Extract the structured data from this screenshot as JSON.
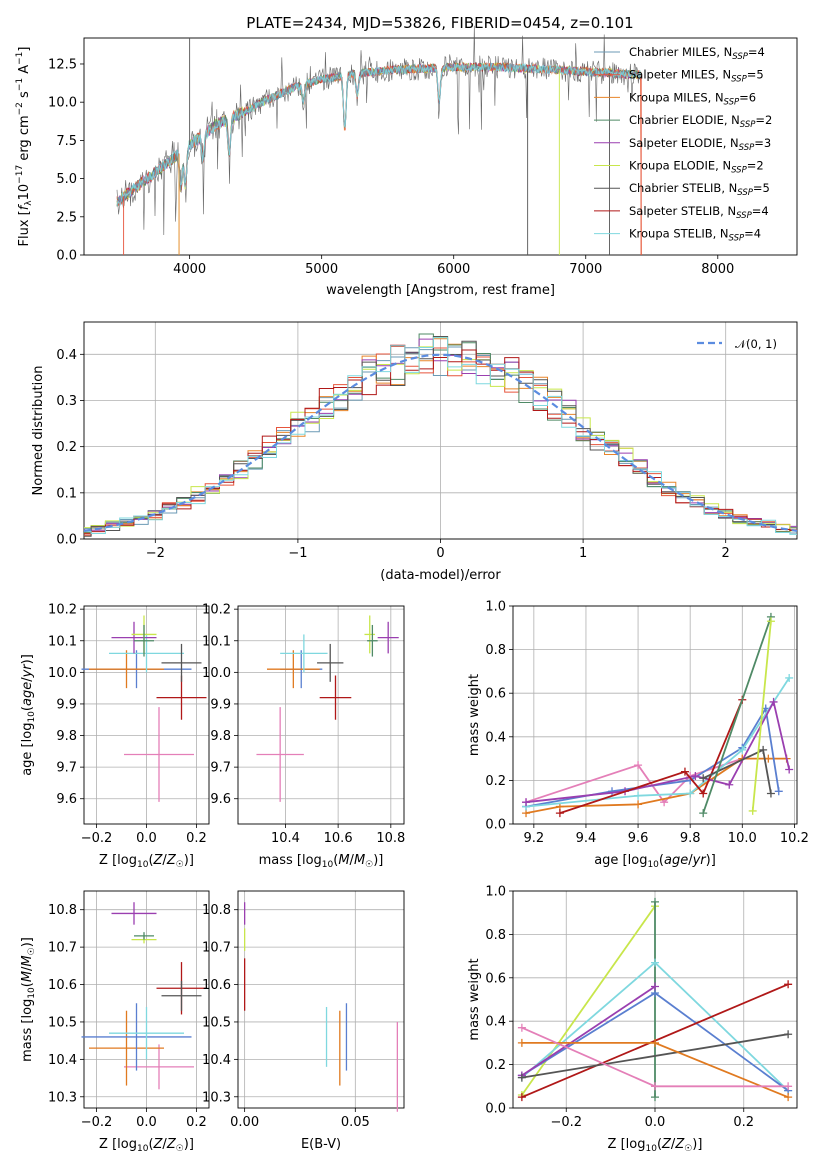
{
  "colors": {
    "cm": "#6b9ab5",
    "sm": "#e6553c",
    "km": "#e8852a",
    "ce": "#4f8a66",
    "se": "#9a3fb0",
    "ke": "#c8e64b",
    "cs": "#555555",
    "ss": "#b01818",
    "ks": "#7fd8df",
    "pink": "#e47fb8",
    "blue": "#5a7fd0",
    "orange": "#e07a20",
    "dashed": "#5b8ce0",
    "grid": "#b0b0b0"
  },
  "chart_data": [
    {
      "type": "line",
      "title": "PLATE=2434, MJD=53826, FIBERID=0454, z=0.101",
      "xlabel": "wavelength [Angstrom, rest frame]",
      "ylabel": "Flux [f_λ 10^-17 erg cm^-2 s^-1 A^-1]",
      "xlim": [
        3200,
        8600
      ],
      "ylim": [
        0,
        14.2
      ],
      "xticks": [
        "4000",
        "5000",
        "6000",
        "7000",
        "8000"
      ],
      "yticks": [
        "0.0",
        "2.5",
        "5.0",
        "7.5",
        "10.0",
        "12.5"
      ],
      "continuum_x": [
        3450,
        3600,
        3800,
        4000,
        4200,
        4400,
        4600,
        4800,
        5000,
        5200,
        5500,
        5800,
        6000,
        6300,
        6600,
        7000,
        7400
      ],
      "continuum_y": [
        3.5,
        4.5,
        5.8,
        7.2,
        8.5,
        9.3,
        10.2,
        11.0,
        11.5,
        11.8,
        12.1,
        12.2,
        12.3,
        12.3,
        12.2,
        12.0,
        11.8
      ],
      "legend_placement": "right",
      "legend": [
        {
          "name": "Chabrier MILES, N",
          "sub": "SSP",
          "val": "=4"
        },
        {
          "name": "Salpeter MILES, N",
          "sub": "SSP",
          "val": "=5"
        },
        {
          "name": "Kroupa MILES, N",
          "sub": "SSP",
          "val": "=6"
        },
        {
          "name": "Chabrier ELODIE, N",
          "sub": "SSP",
          "val": "=2"
        },
        {
          "name": "Salpeter ELODIE, N",
          "sub": "SSP",
          "val": "=3"
        },
        {
          "name": "Kroupa ELODIE, N",
          "sub": "SSP",
          "val": "=2"
        },
        {
          "name": "Chabrier STELIB, N",
          "sub": "SSP",
          "val": "=5"
        },
        {
          "name": "Salpeter STELIB, N",
          "sub": "SSP",
          "val": "=4"
        },
        {
          "name": "Kroupa STELIB, N",
          "sub": "SSP",
          "val": "=4"
        }
      ]
    },
    {
      "type": "histogram",
      "xlabel": "(data-model)/error",
      "ylabel": "Normed distribution",
      "xlim": [
        -2.5,
        2.5
      ],
      "ylim": [
        0,
        0.47
      ],
      "xticks": [
        "−2",
        "−1",
        "0",
        "1",
        "2"
      ],
      "yticks": [
        "0.0",
        "0.1",
        "0.2",
        "0.3",
        "0.4"
      ],
      "legend": "𝒩(0, 1)",
      "grid": true
    },
    {
      "type": "scatter",
      "xlabel": "Z [log10(Z/Z☉)]",
      "ylabel": "age [log10(age/yr)]",
      "xlim": [
        -0.25,
        0.25
      ],
      "ylim": [
        9.52,
        10.21
      ],
      "xticks": [
        "−0.2",
        "0.0",
        "0.2"
      ],
      "yticks": [
        "9.6",
        "9.7",
        "9.8",
        "9.9",
        "10.0",
        "10.1",
        "10.2"
      ],
      "points": [
        {
          "x": 0.05,
          "y": 9.74,
          "xe": 0.14,
          "ye": 0.15,
          "c": "pink"
        },
        {
          "x": 0.14,
          "y": 9.92,
          "xe": 0.1,
          "ye": 0.07,
          "c": "ss"
        },
        {
          "x": -0.04,
          "y": 10.01,
          "xe": 0.22,
          "ye": 0.06,
          "c": "blue"
        },
        {
          "x": -0.08,
          "y": 10.01,
          "xe": 0.15,
          "ye": 0.06,
          "c": "orange"
        },
        {
          "x": 0.0,
          "y": 10.06,
          "xe": 0.15,
          "ye": 0.06,
          "c": "ks"
        },
        {
          "x": 0.14,
          "y": 10.03,
          "xe": 0.08,
          "ye": 0.06,
          "c": "cs"
        },
        {
          "x": -0.05,
          "y": 10.11,
          "xe": 0.09,
          "ye": 0.05,
          "c": "se"
        },
        {
          "x": -0.01,
          "y": 10.12,
          "xe": 0.05,
          "ye": 0.06,
          "c": "ke"
        },
        {
          "x": -0.01,
          "y": 10.1,
          "xe": 0.04,
          "ye": 0.05,
          "c": "ce"
        }
      ]
    },
    {
      "type": "scatter",
      "xlabel": "mass [log10(M/M☉)]",
      "ylabel": "",
      "xlim": [
        10.22,
        10.85
      ],
      "ylim": [
        9.52,
        10.21
      ],
      "xticks": [
        "10.4",
        "10.6",
        "10.8"
      ],
      "yticks": [
        "9.6",
        "9.7",
        "9.8",
        "9.9",
        "10.0",
        "10.1",
        "10.2"
      ],
      "points": [
        {
          "x": 10.38,
          "y": 9.74,
          "xe": 0.09,
          "ye": 0.15,
          "c": "pink"
        },
        {
          "x": 10.59,
          "y": 9.92,
          "xe": 0.06,
          "ye": 0.07,
          "c": "ss"
        },
        {
          "x": 10.46,
          "y": 10.01,
          "xe": 0.08,
          "ye": 0.06,
          "c": "blue"
        },
        {
          "x": 10.43,
          "y": 10.01,
          "xe": 0.1,
          "ye": 0.06,
          "c": "orange"
        },
        {
          "x": 10.47,
          "y": 10.06,
          "xe": 0.09,
          "ye": 0.06,
          "c": "ks"
        },
        {
          "x": 10.57,
          "y": 10.03,
          "xe": 0.05,
          "ye": 0.06,
          "c": "cs"
        },
        {
          "x": 10.79,
          "y": 10.11,
          "xe": 0.04,
          "ye": 0.05,
          "c": "se"
        },
        {
          "x": 10.72,
          "y": 10.12,
          "xe": 0.02,
          "ye": 0.06,
          "c": "ke"
        },
        {
          "x": 10.73,
          "y": 10.1,
          "xe": 0.02,
          "ye": 0.05,
          "c": "ce"
        }
      ]
    },
    {
      "type": "line",
      "xlabel": "age [log10(age/yr)]",
      "ylabel": "mass weight",
      "xlim": [
        9.12,
        10.21
      ],
      "ylim": [
        0,
        1.0
      ],
      "xticks": [
        "9.2",
        "9.4",
        "9.6",
        "9.8",
        "10.0",
        "10.2"
      ],
      "yticks": [
        "0.0",
        "0.2",
        "0.4",
        "0.6",
        "0.8",
        "1.0"
      ],
      "series": [
        {
          "c": "pink",
          "x": [
            9.17,
            9.6,
            9.7,
            9.8,
            10.0
          ],
          "y": [
            0.1,
            0.27,
            0.1,
            0.22,
            0.3
          ]
        },
        {
          "c": "orange",
          "x": [
            9.17,
            9.3,
            9.6,
            9.8,
            10.0,
            10.1,
            10.17
          ],
          "y": [
            0.05,
            0.08,
            0.09,
            0.14,
            0.3,
            0.3,
            0.3
          ]
        },
        {
          "c": "blue",
          "x": [
            9.17,
            9.5,
            9.8,
            10.0,
            10.09,
            10.14
          ],
          "y": [
            0.08,
            0.15,
            0.2,
            0.35,
            0.53,
            0.15
          ]
        },
        {
          "c": "ks",
          "x": [
            9.17,
            9.6,
            9.8,
            10.0,
            10.18
          ],
          "y": [
            0.08,
            0.13,
            0.14,
            0.34,
            0.67
          ]
        },
        {
          "c": "se",
          "x": [
            9.17,
            9.55,
            9.82,
            9.95,
            10.12,
            10.18
          ],
          "y": [
            0.1,
            0.15,
            0.22,
            0.18,
            0.56,
            0.25
          ]
        },
        {
          "c": "ss",
          "x": [
            9.3,
            9.78,
            9.85,
            10.0
          ],
          "y": [
            0.05,
            0.24,
            0.14,
            0.57
          ]
        },
        {
          "c": "cs",
          "x": [
            9.85,
            10.08,
            10.11
          ],
          "y": [
            0.21,
            0.34,
            0.14
          ]
        },
        {
          "c": "ce",
          "x": [
            9.85,
            10.11
          ],
          "y": [
            0.05,
            0.95
          ]
        },
        {
          "c": "ke",
          "x": [
            10.04,
            10.11
          ],
          "y": [
            0.06,
            0.93
          ]
        }
      ]
    },
    {
      "type": "scatter",
      "xlabel": "Z [log10(Z/Z☉)]",
      "ylabel": "mass [log10(M/M☉)]",
      "xlim": [
        -0.25,
        0.25
      ],
      "ylim": [
        10.27,
        10.85
      ],
      "xticks": [
        "−0.2",
        "0.0",
        "0.2"
      ],
      "yticks": [
        "10.3",
        "10.4",
        "10.5",
        "10.6",
        "10.7",
        "10.8"
      ],
      "points": [
        {
          "x": 0.05,
          "y": 10.38,
          "xe": 0.14,
          "ye": 0.06,
          "c": "pink"
        },
        {
          "x": -0.08,
          "y": 10.43,
          "xe": 0.15,
          "ye": 0.1,
          "c": "orange"
        },
        {
          "x": -0.04,
          "y": 10.46,
          "xe": 0.22,
          "ye": 0.09,
          "c": "blue"
        },
        {
          "x": 0.0,
          "y": 10.47,
          "xe": 0.15,
          "ye": 0.07,
          "c": "ks"
        },
        {
          "x": 0.14,
          "y": 10.59,
          "xe": 0.1,
          "ye": 0.07,
          "c": "ss"
        },
        {
          "x": 0.14,
          "y": 10.57,
          "xe": 0.08,
          "ye": 0.04,
          "c": "cs"
        },
        {
          "x": -0.05,
          "y": 10.79,
          "xe": 0.09,
          "ye": 0.03,
          "c": "se"
        },
        {
          "x": -0.01,
          "y": 10.72,
          "xe": 0.05,
          "ye": 0.01,
          "c": "ke"
        },
        {
          "x": -0.01,
          "y": 10.73,
          "xe": 0.04,
          "ye": 0.01,
          "c": "ce"
        }
      ]
    },
    {
      "type": "scatter",
      "xlabel": "E(B-V)",
      "ylabel": "",
      "xlim": [
        -0.003,
        0.072
      ],
      "ylim": [
        10.27,
        10.85
      ],
      "xticks": [
        "0.00",
        "0.05"
      ],
      "yticks": [
        "10.3",
        "10.4",
        "10.5",
        "10.6",
        "10.7",
        "10.8"
      ],
      "points": [
        {
          "x": 0.069,
          "y": 10.38,
          "xe": 0,
          "ye": 0.12,
          "c": "pink"
        },
        {
          "x": 0.043,
          "y": 10.43,
          "xe": 0,
          "ye": 0.1,
          "c": "orange"
        },
        {
          "x": 0.046,
          "y": 10.46,
          "xe": 0,
          "ye": 0.09,
          "c": "blue"
        },
        {
          "x": 0.037,
          "y": 10.46,
          "xe": 0,
          "ye": 0.08,
          "c": "ks"
        },
        {
          "x": 0.0,
          "y": 10.6,
          "xe": 0,
          "ye": 0.07,
          "c": "ss"
        },
        {
          "x": 0.0,
          "y": 10.79,
          "xe": 0,
          "ye": 0.03,
          "c": "se"
        },
        {
          "x": 0.0,
          "y": 10.72,
          "xe": 0,
          "ye": 0.03,
          "c": "ke"
        }
      ]
    },
    {
      "type": "line",
      "xlabel": "Z [log10(Z/Z☉)]",
      "ylabel": "mass weight",
      "xlim": [
        -0.32,
        0.32
      ],
      "ylim": [
        0,
        1.0
      ],
      "xticks": [
        "−0.2",
        "0.0",
        "0.2"
      ],
      "yticks": [
        "0.0",
        "0.2",
        "0.4",
        "0.6",
        "0.8",
        "1.0"
      ],
      "series": [
        {
          "c": "ke",
          "x": [
            -0.3,
            0.0
          ],
          "y": [
            0.06,
            0.93
          ]
        },
        {
          "c": "ce",
          "x": [
            0.0,
            0.0
          ],
          "y": [
            0.05,
            0.95
          ]
        },
        {
          "c": "ks",
          "x": [
            -0.3,
            0.0,
            0.3
          ],
          "y": [
            0.14,
            0.67,
            0.08
          ]
        },
        {
          "c": "blue",
          "x": [
            -0.3,
            0.0,
            0.3
          ],
          "y": [
            0.15,
            0.53,
            0.08
          ]
        },
        {
          "c": "se",
          "x": [
            -0.3,
            0.0
          ],
          "y": [
            0.15,
            0.56
          ]
        },
        {
          "c": "ss",
          "x": [
            -0.3,
            0.3
          ],
          "y": [
            0.05,
            0.57
          ]
        },
        {
          "c": "cs",
          "x": [
            -0.3,
            0.3
          ],
          "y": [
            0.14,
            0.34
          ]
        },
        {
          "c": "orange",
          "x": [
            -0.3,
            0.0,
            0.3
          ],
          "y": [
            0.3,
            0.3,
            0.05
          ]
        },
        {
          "c": "pink",
          "x": [
            -0.3,
            0.0,
            0.3
          ],
          "y": [
            0.37,
            0.1,
            0.1
          ]
        }
      ]
    }
  ]
}
